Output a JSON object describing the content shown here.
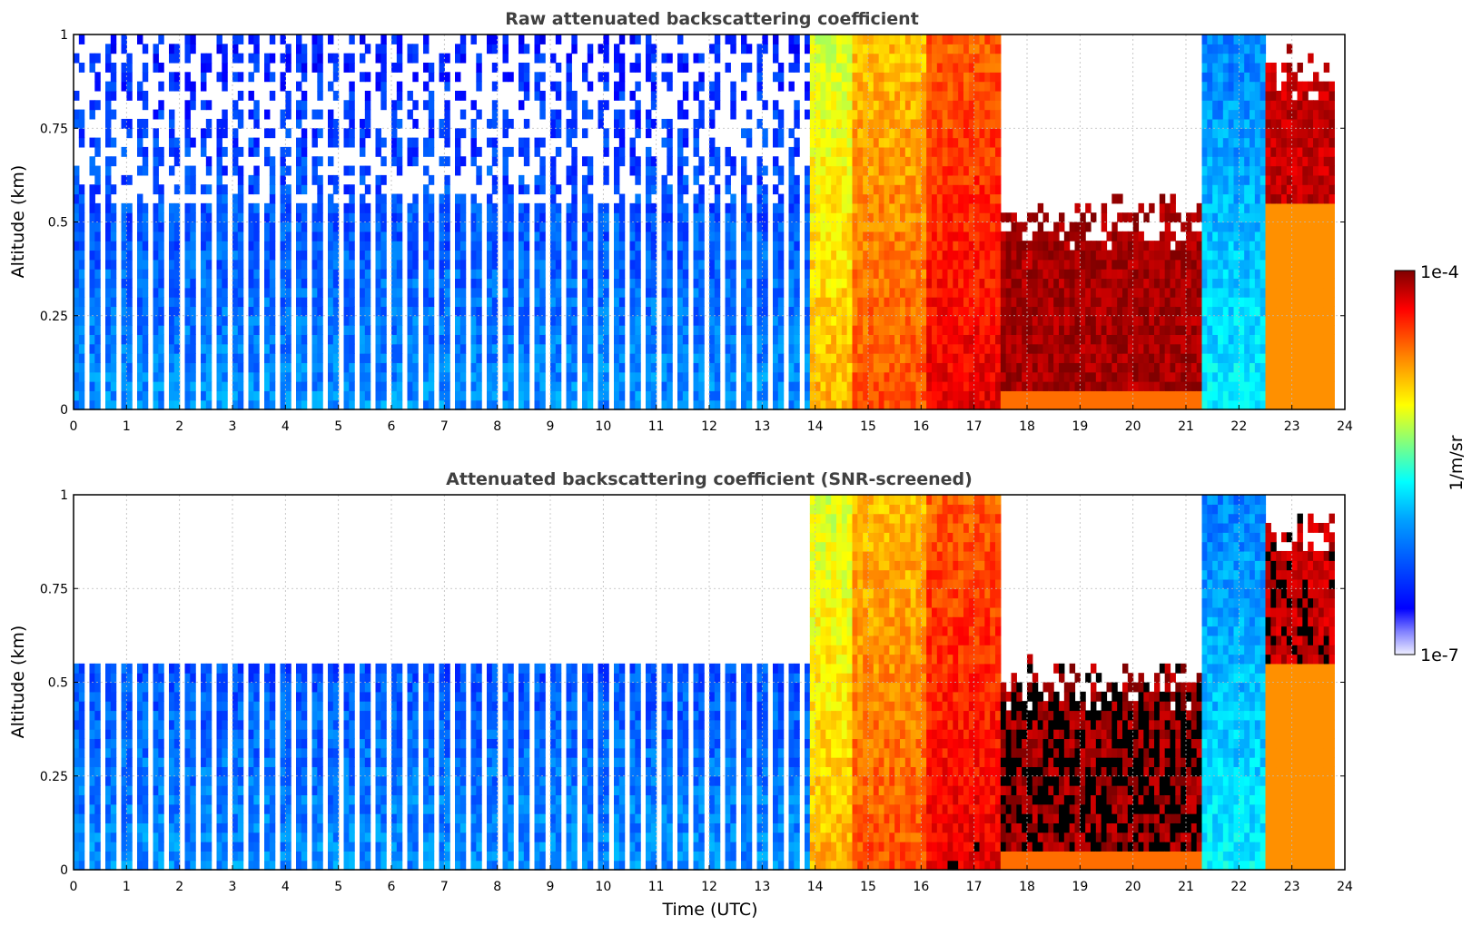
{
  "chart_data": [
    {
      "type": "heatmap",
      "title": "Raw attenuated backscattering coefficient",
      "xlabel": "",
      "ylabel": "Altitude (km)",
      "xlim": [
        0,
        24
      ],
      "ylim": [
        0,
        1
      ],
      "x_ticks": [
        "0",
        "1",
        "2",
        "3",
        "4",
        "5",
        "6",
        "7",
        "8",
        "9",
        "10",
        "11",
        "12",
        "13",
        "14",
        "15",
        "16",
        "17",
        "18",
        "19",
        "20",
        "21",
        "22",
        "23",
        "24"
      ],
      "y_ticks": [
        "0",
        "0.25",
        "0.5",
        "0.75",
        "1"
      ],
      "grid": true,
      "colorscale": "jet (log)",
      "regions": [
        {
          "t_start": 0.0,
          "t_end": 13.85,
          "description": "blue",
          "log10_value": -6.2
        },
        {
          "t_start": 13.85,
          "t_end": 14.7,
          "description": "yellow",
          "log10_value": -4.9
        },
        {
          "t_start": 14.7,
          "t_end": 16.1,
          "description": "yellow-orange",
          "log10_value": -4.6
        },
        {
          "t_start": 16.1,
          "t_end": 17.5,
          "description": "orange-red",
          "log10_value": -4.3
        },
        {
          "t_start": 17.5,
          "t_end": 21.3,
          "description": "cloud layer, dark red",
          "cloud_base_km": 0.05,
          "cloud_top_km": 0.5,
          "log10_value": -4.1
        },
        {
          "t_start": 21.3,
          "t_end": 22.5,
          "description": "blue",
          "log10_value": -5.9
        },
        {
          "t_start": 22.5,
          "t_end": 23.8,
          "description": "cloud aloft, dark red",
          "cloud_base_km": 0.55,
          "cloud_top_km": 0.9,
          "log10_value": -4.2
        }
      ]
    },
    {
      "type": "heatmap",
      "title": "Attenuated backscattering coefficient (SNR-screened)",
      "xlabel": "Time (UTC)",
      "ylabel": "Altitude (km)",
      "xlim": [
        0,
        24
      ],
      "ylim": [
        0,
        1
      ],
      "x_ticks": [
        "0",
        "1",
        "2",
        "3",
        "4",
        "5",
        "6",
        "7",
        "8",
        "9",
        "10",
        "11",
        "12",
        "13",
        "14",
        "15",
        "16",
        "17",
        "18",
        "19",
        "20",
        "21",
        "22",
        "23",
        "24"
      ],
      "y_ticks": [
        "0",
        "0.25",
        "0.5",
        "0.75",
        "1"
      ],
      "grid": true,
      "colorscale": "jet (log)",
      "screened_top_km": 0.55
    }
  ],
  "colorbar": {
    "label": "1/m/sr",
    "max_label": "1e-4",
    "min_label": "1e-7",
    "scale": "log",
    "range": [
      1e-07,
      0.0001
    ]
  },
  "colors": {
    "title": "#404040",
    "jet": [
      "#00007f",
      "#0000ff",
      "#007fff",
      "#00ffff",
      "#7fff7f",
      "#ffff00",
      "#ff7f00",
      "#ff0000",
      "#7f0000"
    ]
  }
}
